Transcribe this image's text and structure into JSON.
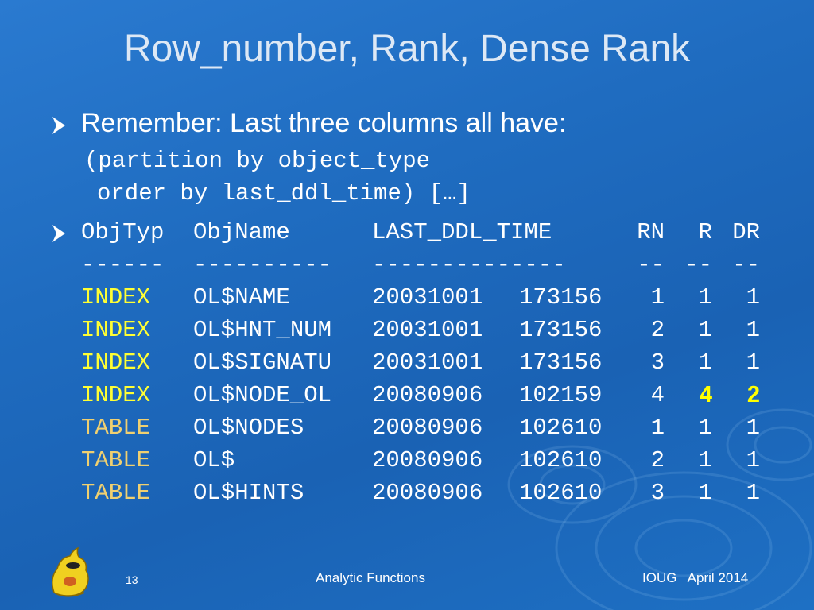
{
  "slide": {
    "title": "Row_number, Rank, Dense Rank",
    "bullet1": {
      "text": "Remember: Last three columns all have:",
      "code_line1": "(partition by object_type",
      "code_line2": "order by last_ddl_time) […]"
    },
    "table": {
      "headers": {
        "type": "ObjTyp",
        "name": "ObjName",
        "date": "LAST_DDL_TIME",
        "rn": "RN",
        "r": "R",
        "dr": "DR"
      },
      "separators": {
        "type": "------",
        "name": "----------",
        "date": "--------------",
        "rn": "--",
        "r": "--",
        "dr": "--"
      },
      "rows": [
        {
          "type": "INDEX",
          "name": "OL$NAME",
          "date": "20031001",
          "time": "173156",
          "rn": "1",
          "r": "1",
          "dr": "1"
        },
        {
          "type": "INDEX",
          "name": "OL$HNT_NUM",
          "date": "20031001",
          "time": "173156",
          "rn": "2",
          "r": "1",
          "dr": "1"
        },
        {
          "type": "INDEX",
          "name": "OL$SIGNATU",
          "date": "20031001",
          "time": "173156",
          "rn": "3",
          "r": "1",
          "dr": "1"
        },
        {
          "type": "INDEX",
          "name": "OL$NODE_OL",
          "date": "20080906",
          "time": "102159",
          "rn": "4",
          "r": "4",
          "dr": "2"
        },
        {
          "type": "TABLE",
          "name": "OL$NODES",
          "date": "20080906",
          "time": "102610",
          "rn": "1",
          "r": "1",
          "dr": "1"
        },
        {
          "type": "TABLE",
          "name": "OL$",
          "date": "20080906",
          "time": "102610",
          "rn": "2",
          "r": "1",
          "dr": "1"
        },
        {
          "type": "TABLE",
          "name": "OL$HINTS",
          "date": "20080906",
          "time": "102610",
          "rn": "3",
          "r": "1",
          "dr": "1"
        }
      ]
    },
    "footer": {
      "slide_number": "13",
      "center": "Analytic Functions",
      "right": "IOUG   April 2014"
    },
    "colors": {
      "background": "#1f6cc0",
      "index_type": "#ffff33",
      "table_type": "#f0d070",
      "highlight": "#ffff00"
    }
  }
}
